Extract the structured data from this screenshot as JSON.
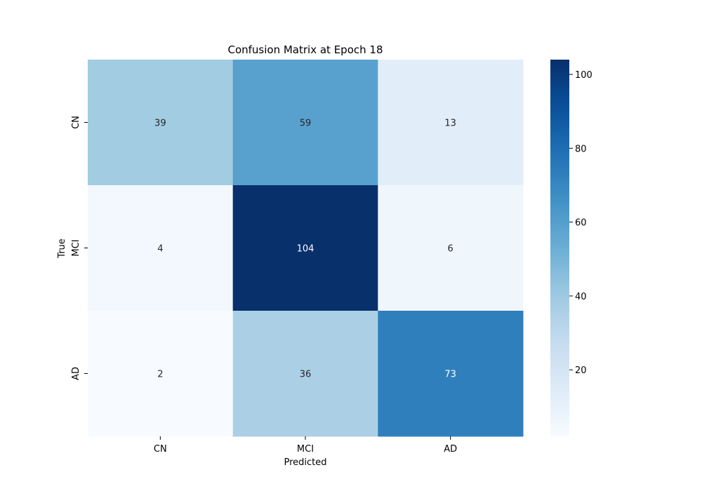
{
  "chart_data": {
    "type": "heatmap",
    "title": "Confusion Matrix at Epoch 18",
    "xlabel": "Predicted",
    "ylabel": "True",
    "x_categories": [
      "CN",
      "MCI",
      "AD"
    ],
    "y_categories": [
      "CN",
      "MCI",
      "AD"
    ],
    "values": [
      [
        39,
        59,
        13
      ],
      [
        4,
        104,
        6
      ],
      [
        2,
        36,
        73
      ]
    ],
    "colormap": "Blues",
    "value_range": [
      2,
      104
    ],
    "colorbar_ticks": [
      20,
      40,
      60,
      80,
      100
    ],
    "colorbar_tick_labels": [
      "20",
      "40",
      "60",
      "80",
      "100"
    ],
    "annotations": true,
    "grid": false
  }
}
